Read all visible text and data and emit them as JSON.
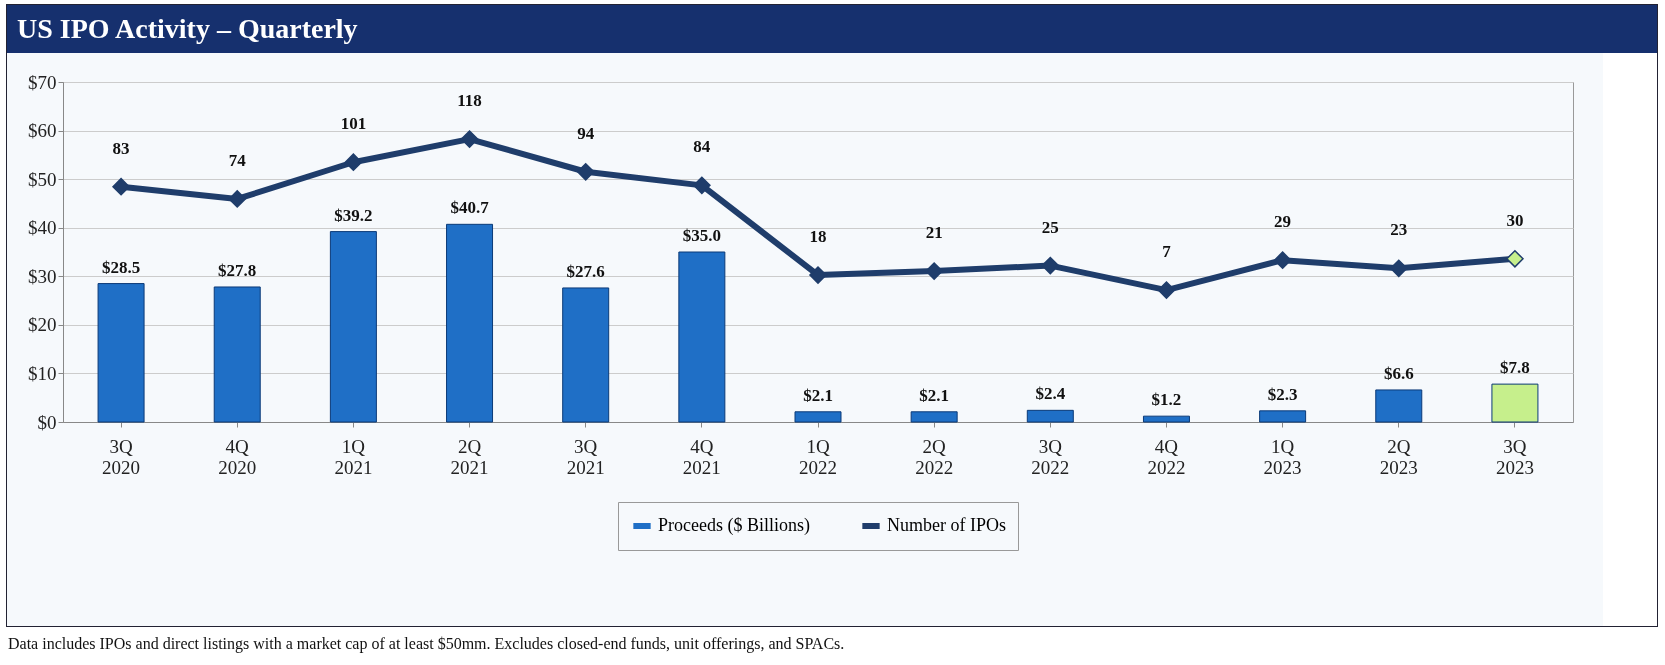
{
  "chart_data": {
    "type": "bar",
    "title": "US IPO Activity – Quarterly",
    "categories": [
      "3Q 2020",
      "4Q 2020",
      "1Q 2021",
      "2Q 2021",
      "3Q 2021",
      "4Q 2021",
      "1Q 2022",
      "2Q 2022",
      "3Q 2022",
      "4Q 2022",
      "1Q 2023",
      "2Q 2023",
      "3Q 2023"
    ],
    "series": [
      {
        "name": "Proceeds ($ Billions)",
        "color": "#1f6fc6",
        "colors": [
          "#1f6fc6",
          "#1f6fc6",
          "#1f6fc6",
          "#1f6fc6",
          "#1f6fc6",
          "#1f6fc6",
          "#1f6fc6",
          "#1f6fc6",
          "#1f6fc6",
          "#1f6fc6",
          "#1f6fc6",
          "#1f6fc6",
          "#c6ef8c"
        ],
        "values": [
          28.5,
          27.8,
          39.2,
          40.7,
          27.6,
          35.0,
          2.1,
          2.1,
          2.4,
          1.2,
          2.3,
          6.6,
          7.8
        ],
        "value_labels": [
          "$28.5",
          "$27.8",
          "$39.2",
          "$40.7",
          "$27.6",
          "$35.0",
          "$2.1",
          "$2.1",
          "$2.4",
          "$1.2",
          "$2.3",
          "$6.6",
          "$7.8"
        ]
      },
      {
        "name": "Number of IPOs",
        "type": "line",
        "axis": "y2",
        "color": "#1f3d6b",
        "colors": [
          "#1f3d6b",
          "#1f3d6b",
          "#1f3d6b",
          "#1f3d6b",
          "#1f3d6b",
          "#1f3d6b",
          "#1f3d6b",
          "#1f3d6b",
          "#1f3d6b",
          "#1f3d6b",
          "#1f3d6b",
          "#1f3d6b",
          "#c6ef8c"
        ],
        "values": [
          83,
          74,
          101,
          118,
          94,
          84,
          18,
          21,
          25,
          7,
          29,
          23,
          30
        ],
        "value_labels": [
          "83",
          "74",
          "101",
          "118",
          "94",
          "84",
          "18",
          "21",
          "25",
          "7",
          "29",
          "23",
          "30"
        ]
      }
    ],
    "ylim": [
      0,
      70
    ],
    "yticks": [
      {
        "value": 0,
        "label": "$0"
      },
      {
        "value": 10,
        "label": "$10"
      },
      {
        "value": 20,
        "label": "$20"
      },
      {
        "value": 30,
        "label": "$30"
      },
      {
        "value": 40,
        "label": "$40"
      },
      {
        "value": 50,
        "label": "$50"
      },
      {
        "value": 60,
        "label": "$60"
      },
      {
        "value": 70,
        "label": "$70"
      }
    ],
    "y2lim": [
      -90,
      160
    ],
    "tick_labels": [
      "x",
      "y"
    ],
    "grid": "y",
    "marker": "diamond",
    "legend": "bottom",
    "annotations": [
      "Data includes IPOs and direct listings with a market cap of at least $50mm. Excludes closed-end funds, unit offerings, and SPACs."
    ]
  }
}
